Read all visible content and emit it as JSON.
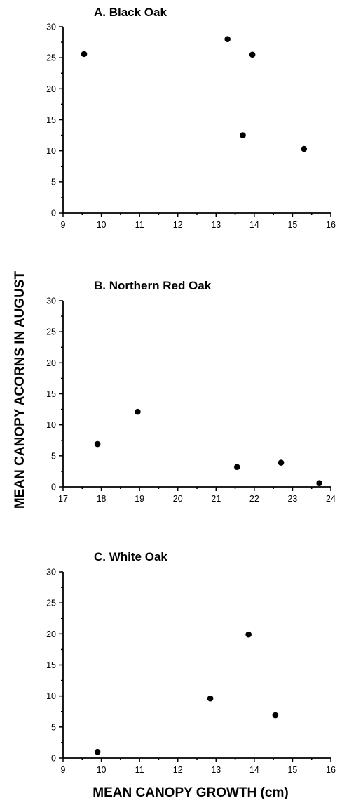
{
  "chart_data": [
    {
      "type": "scatter",
      "title": "A. Black Oak",
      "xlim": [
        9,
        16
      ],
      "ylim": [
        0,
        30
      ],
      "xticks": [
        9,
        10,
        11,
        12,
        13,
        14,
        15,
        16
      ],
      "yticks": [
        0,
        5,
        10,
        15,
        20,
        25,
        30
      ],
      "grid": false,
      "points": [
        {
          "x": 9.55,
          "y": 25.6
        },
        {
          "x": 13.3,
          "y": 28.0
        },
        {
          "x": 13.95,
          "y": 25.5
        },
        {
          "x": 13.7,
          "y": 12.5
        },
        {
          "x": 15.3,
          "y": 10.3
        }
      ]
    },
    {
      "type": "scatter",
      "title": "B. Northern Red Oak",
      "xlim": [
        17,
        24
      ],
      "ylim": [
        0,
        30
      ],
      "xticks": [
        17,
        18,
        19,
        20,
        21,
        22,
        23,
        24
      ],
      "yticks": [
        0,
        5,
        10,
        15,
        20,
        25,
        30
      ],
      "grid": false,
      "points": [
        {
          "x": 17.9,
          "y": 6.9
        },
        {
          "x": 18.95,
          "y": 12.1
        },
        {
          "x": 21.55,
          "y": 3.2
        },
        {
          "x": 22.7,
          "y": 3.9
        },
        {
          "x": 23.7,
          "y": 0.6
        }
      ]
    },
    {
      "type": "scatter",
      "title": "C. White Oak",
      "xlim": [
        9,
        16
      ],
      "ylim": [
        0,
        30
      ],
      "xticks": [
        9,
        10,
        11,
        12,
        13,
        14,
        15,
        16
      ],
      "yticks": [
        0,
        5,
        10,
        15,
        20,
        25,
        30
      ],
      "grid": false,
      "points": [
        {
          "x": 9.9,
          "y": 1.0
        },
        {
          "x": 12.85,
          "y": 9.6
        },
        {
          "x": 13.85,
          "y": 19.9
        },
        {
          "x": 14.55,
          "y": 6.9
        }
      ]
    }
  ],
  "ylabel": "MEAN CANOPY ACORNS IN AUGUST",
  "xlabel": "MEAN CANOPY GROWTH (cm)"
}
